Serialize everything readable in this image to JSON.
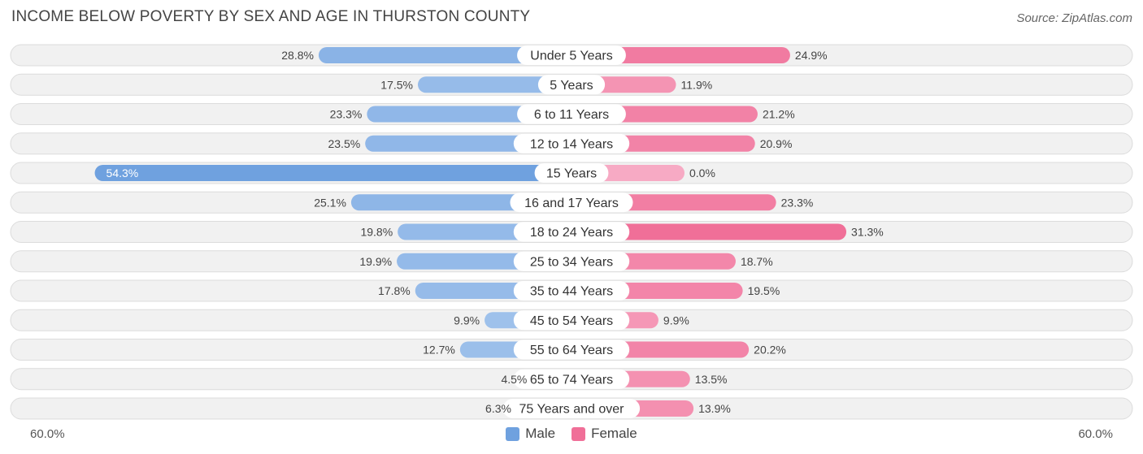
{
  "title": "INCOME BELOW POVERTY BY SEX AND AGE IN THURSTON COUNTY",
  "source": "Source: ZipAtlas.com",
  "colors": {
    "male": "#6fa1df",
    "male_light": "#a9c8ee",
    "female": "#f06f98",
    "female_light": "#f7aac4",
    "row_bg": "#f1f1f1",
    "row_border": "#dcdcdc"
  },
  "axis": {
    "left_label": "60.0%",
    "right_label": "60.0%"
  },
  "legend": {
    "male": "Male",
    "female": "Female"
  },
  "chart_data": {
    "type": "bar",
    "orientation": "horizontal-diverging",
    "title": "INCOME BELOW POVERTY BY SEX AND AGE IN THURSTON COUNTY",
    "categories": [
      "Under 5 Years",
      "5 Years",
      "6 to 11 Years",
      "12 to 14 Years",
      "15 Years",
      "16 and 17 Years",
      "18 to 24 Years",
      "25 to 34 Years",
      "35 to 44 Years",
      "45 to 54 Years",
      "55 to 64 Years",
      "65 to 74 Years",
      "75 Years and over"
    ],
    "series": [
      {
        "name": "Male",
        "values": [
          28.8,
          17.5,
          23.3,
          23.5,
          54.3,
          25.1,
          19.8,
          19.9,
          17.8,
          9.9,
          12.7,
          4.5,
          6.3
        ],
        "labels": [
          "28.8%",
          "17.5%",
          "23.3%",
          "23.5%",
          "54.3%",
          "25.1%",
          "19.8%",
          "19.9%",
          "17.8%",
          "9.9%",
          "12.7%",
          "4.5%",
          "6.3%"
        ]
      },
      {
        "name": "Female",
        "values": [
          24.9,
          11.9,
          21.2,
          20.9,
          0.0,
          23.3,
          31.3,
          18.7,
          19.5,
          9.9,
          20.2,
          13.5,
          13.9
        ],
        "labels": [
          "24.9%",
          "11.9%",
          "21.2%",
          "20.9%",
          "0.0%",
          "23.3%",
          "31.3%",
          "18.7%",
          "19.5%",
          "9.9%",
          "20.2%",
          "13.5%",
          "13.9%"
        ]
      }
    ],
    "xlim": [
      0,
      60
    ],
    "unit": "%"
  }
}
